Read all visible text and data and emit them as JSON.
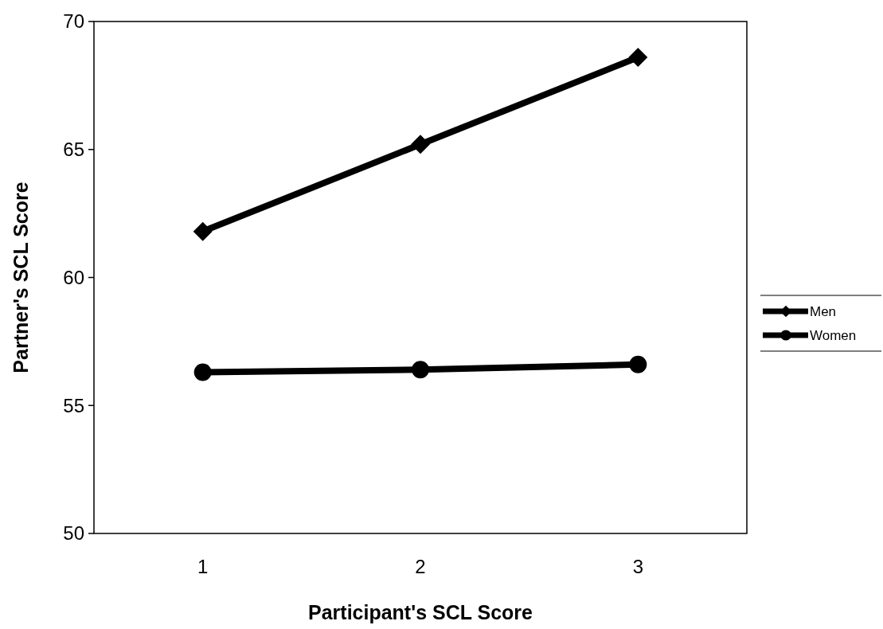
{
  "chart_data": {
    "type": "line",
    "xlabel": "Participant's SCL Score",
    "ylabel": "Partner's SCL Score",
    "categories": [
      "1",
      "2",
      "3"
    ],
    "series": [
      {
        "name": "Men",
        "color": "#000000",
        "values": [
          61.8,
          65.2,
          68.6
        ],
        "marker": "diamond"
      },
      {
        "name": "Women",
        "color": "#000000",
        "values": [
          56.3,
          56.4,
          56.6
        ],
        "marker": "circle"
      }
    ],
    "ylim": [
      50,
      70
    ],
    "yticks": [
      50,
      55,
      60,
      65,
      70
    ],
    "grid": false,
    "legend": "right",
    "line_style": "solid"
  }
}
